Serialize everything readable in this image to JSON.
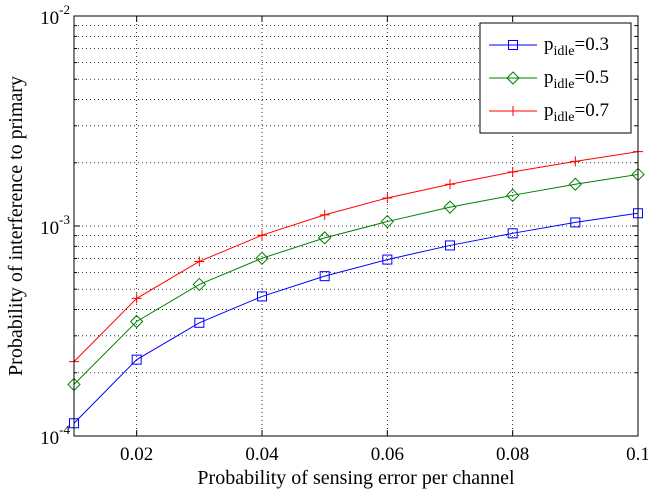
{
  "chart_data": {
    "type": "line",
    "xlabel": "Probability of sensing error per channel",
    "ylabel": "Probability of interference to primary",
    "xlim": [
      0.01,
      0.1
    ],
    "ylim": [
      0.0001,
      0.01
    ],
    "yscale": "log",
    "grid": true,
    "legend_position": "top-right",
    "x_ticks": [
      0.02,
      0.04,
      0.06,
      0.08,
      0.1
    ],
    "x_tick_labels": [
      "0.02",
      "0.04",
      "0.06",
      "0.08",
      "0.1"
    ],
    "y_ticks": [
      {
        "value": 0.0001,
        "base": "10",
        "exponent": "-4"
      },
      {
        "value": 0.001,
        "base": "10",
        "exponent": "-3"
      },
      {
        "value": 0.01,
        "base": "10",
        "exponent": "-2"
      }
    ],
    "x": [
      0.01,
      0.02,
      0.03,
      0.04,
      0.05,
      0.06,
      0.07,
      0.08,
      0.09,
      0.1
    ],
    "series": [
      {
        "name_main": "p",
        "name_sub": "idle",
        "name_rest": "=0.3",
        "color": "#0000ff",
        "marker": "square",
        "values": [
          0.000115,
          0.000231,
          0.000346,
          0.000462,
          0.000577,
          0.000692,
          0.000808,
          0.000923,
          0.00104,
          0.00115
        ]
      },
      {
        "name_main": "p",
        "name_sub": "idle",
        "name_rest": "=0.5",
        "color": "#008000",
        "marker": "diamond",
        "values": [
          0.000176,
          0.000351,
          0.000527,
          0.000702,
          0.000878,
          0.00105,
          0.00123,
          0.0014,
          0.00158,
          0.00176
        ]
      },
      {
        "name_main": "p",
        "name_sub": "idle",
        "name_rest": "=0.7",
        "color": "#ff0000",
        "marker": "plus",
        "values": [
          0.000226,
          0.000452,
          0.000678,
          0.000904,
          0.00113,
          0.00136,
          0.00158,
          0.00181,
          0.00203,
          0.00226
        ]
      }
    ]
  }
}
